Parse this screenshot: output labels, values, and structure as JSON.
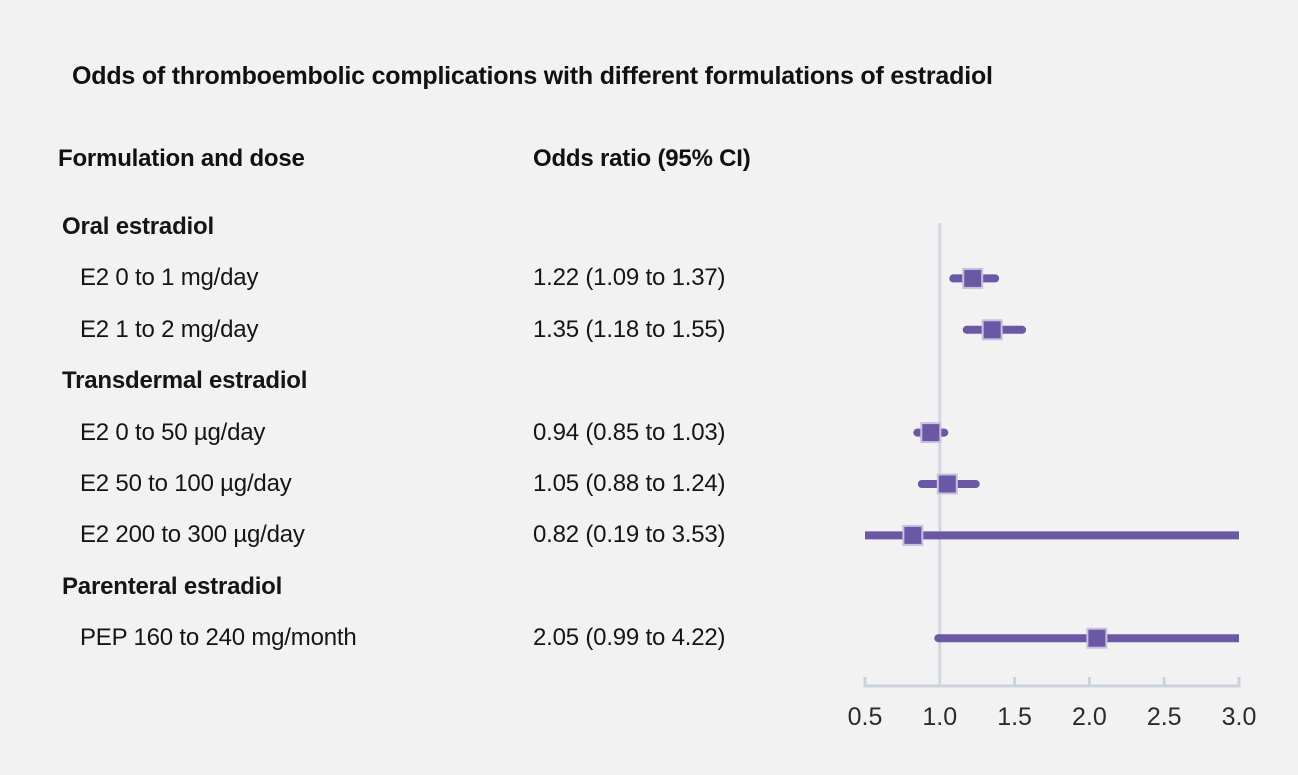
{
  "title": "Odds of thromboembolic complications with different formulations of estradiol",
  "columns": {
    "formulation": "Formulation and dose",
    "odds_ratio": "Odds ratio (95% CI)"
  },
  "chart_data": {
    "type": "forest",
    "title": "Odds of thromboembolic complications with different formulations of estradiol",
    "xlabel": "",
    "ylabel": "",
    "xlim": [
      0.5,
      3.0
    ],
    "reference_line": 1.0,
    "grid": false,
    "legend": false,
    "xticks": [
      {
        "value": 0.5,
        "label": "0.5"
      },
      {
        "value": 1.0,
        "label": "1.0"
      },
      {
        "value": 1.5,
        "label": "1.5"
      },
      {
        "value": 2.0,
        "label": "2.0"
      },
      {
        "value": 2.5,
        "label": "2.5"
      },
      {
        "value": 3.0,
        "label": "3.0"
      }
    ],
    "rows": [
      {
        "type": "group",
        "label": "Oral estradiol",
        "or_text": ""
      },
      {
        "type": "item",
        "label": "E2 0 to 1 mg/day",
        "or_text": "1.22 (1.09 to 1.37)",
        "est": 1.22,
        "lo": 1.09,
        "hi": 1.37
      },
      {
        "type": "item",
        "label": "E2 1 to 2 mg/day",
        "or_text": "1.35 (1.18 to 1.55)",
        "est": 1.35,
        "lo": 1.18,
        "hi": 1.55
      },
      {
        "type": "group",
        "label": "Transdermal estradiol",
        "or_text": ""
      },
      {
        "type": "item",
        "label": "E2 0 to 50 µg/day",
        "or_text": "0.94 (0.85 to 1.03)",
        "est": 0.94,
        "lo": 0.85,
        "hi": 1.03
      },
      {
        "type": "item",
        "label": "E2 50 to 100 µg/day",
        "or_text": "1.05 (0.88 to 1.24)",
        "est": 1.05,
        "lo": 0.88,
        "hi": 1.24
      },
      {
        "type": "item",
        "label": "E2 200 to 300 µg/day",
        "or_text": "0.82 (0.19 to 3.53)",
        "est": 0.82,
        "lo": 0.19,
        "hi": 3.53
      },
      {
        "type": "group",
        "label": "Parenteral estradiol",
        "or_text": ""
      },
      {
        "type": "item",
        "label": "PEP 160 to 240 mg/month",
        "or_text": "2.05 (0.99 to 4.22)",
        "est": 2.05,
        "lo": 0.99,
        "hi": 4.22
      }
    ],
    "colors": {
      "marker": "#6a58a5",
      "marker_border": "#c9c0e0",
      "ci_line": "#6a58a5",
      "axis": "#ccd3db",
      "reference": "#d3d8e0",
      "background": "#f2f2f2",
      "text": "#151515"
    }
  }
}
